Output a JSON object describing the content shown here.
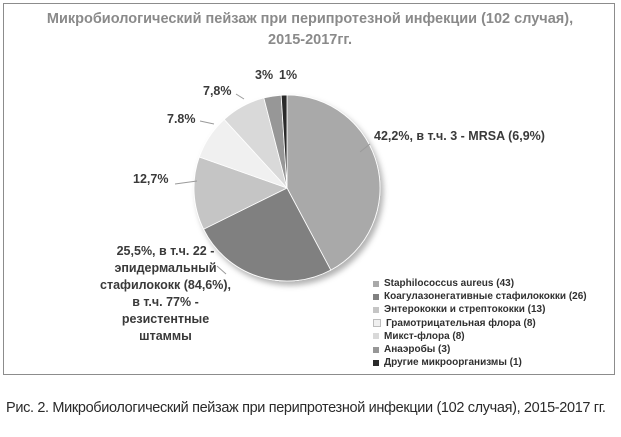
{
  "chart_data": {
    "type": "pie",
    "title_line1": "Микробиологический пейзаж при перипротезной инфекции (102 случая),",
    "title_line2": "2015-2017гг.",
    "slices": [
      {
        "name": "Staphilococcus aureus (43)",
        "value": 42.2,
        "color": "#a9a9a9",
        "label": "42,2%, в т.ч. 3 - MRSA\n(6,9%)"
      },
      {
        "name": "Коагулазонегативные стафилококки (26)",
        "value": 25.5,
        "color": "#808080",
        "label": "25,5%, в т.ч. 22 -\nэпидермальный\nстафилококк (84,6%),\nв т.ч. 77% -\nрезистентные\nштаммы"
      },
      {
        "name": "Энтерококки и стрептококки (13)",
        "value": 12.7,
        "color": "#c5c5c5",
        "label": "12,7%"
      },
      {
        "name": "Грамотрицательная флора (8)",
        "value": 7.8,
        "color": "#f0f0f0",
        "label": "7.8%"
      },
      {
        "name": "Микст-флора (8)",
        "value": 7.8,
        "color": "#d9d9d9",
        "label": "7,8%"
      },
      {
        "name": "Анаэробы (3)",
        "value": 3,
        "color": "#979797",
        "label": "3%"
      },
      {
        "name": "Другие микроорганизмы (1)",
        "value": 1,
        "color": "#2b2b2b",
        "label": "1%"
      }
    ],
    "legend_position": "bottom-right"
  },
  "caption": "Рис. 2. Микробиологический пейзаж при перипротезной инфекции (102 случая), 2015-2017 гг."
}
